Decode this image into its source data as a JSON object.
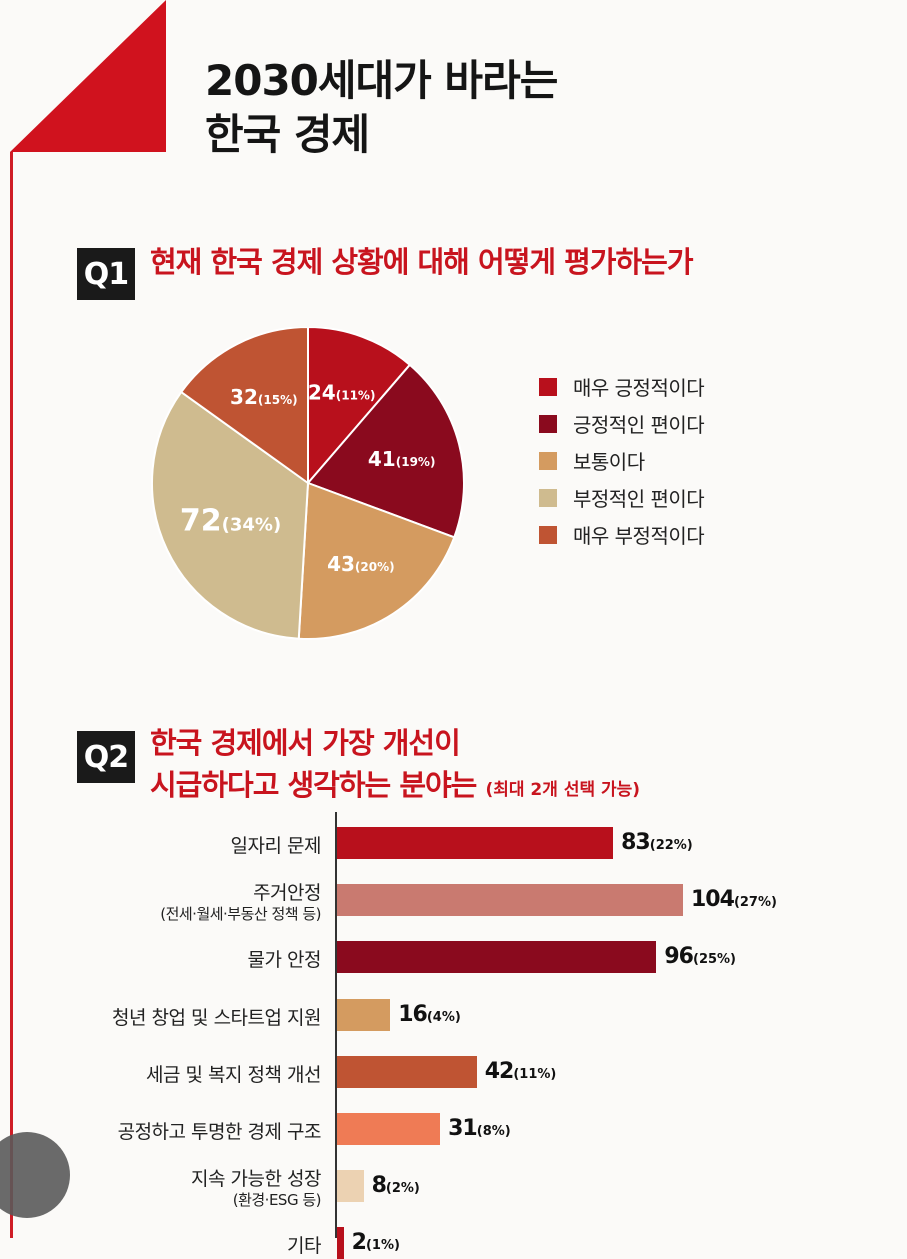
{
  "title": [
    "2030세대가 바라는",
    "한국 경제"
  ],
  "q1": {
    "badge": "Q1",
    "question": "현재 한국 경제 상황에 대해 어떻게 평가하는가"
  },
  "q2": {
    "badge": "Q2",
    "question_line1": "한국 경제에서 가장 개선이",
    "question_line2": "시급하다고 생각하는 분야는",
    "note": "(최대 2개 선택 가능)"
  },
  "chart_data": [
    {
      "type": "pie",
      "labels": [
        "매우 긍정적이다",
        "긍정적인 편이다",
        "보통이다",
        "부정적인 편이다",
        "매우 부정적이다"
      ],
      "values": [
        24,
        41,
        43,
        72,
        32
      ],
      "percents": [
        "(11%)",
        "(19%)",
        "(20%)",
        "(34%)",
        "(15%)"
      ],
      "colors": [
        "#b8101c",
        "#8a0a1e",
        "#d49b60",
        "#cfbb8f",
        "#bf5433"
      ],
      "legend": "right"
    },
    {
      "type": "bar",
      "orientation": "horizontal",
      "categories": [
        {
          "label": "일자리 문제",
          "sub": ""
        },
        {
          "label": "주거안정",
          "sub": "(전세·월세·부동산 정책 등)"
        },
        {
          "label": "물가 안정",
          "sub": ""
        },
        {
          "label": "청년 창업 및 스타트업 지원",
          "sub": ""
        },
        {
          "label": "세금 및 복지 정책 개선",
          "sub": ""
        },
        {
          "label": "공정하고 투명한 경제 구조",
          "sub": ""
        },
        {
          "label": "지속 가능한 성장",
          "sub": "(환경·ESG 등)"
        },
        {
          "label": "기타",
          "sub": ""
        }
      ],
      "values": [
        83,
        104,
        96,
        16,
        42,
        31,
        8,
        2
      ],
      "percents": [
        "(22%)",
        "(27%)",
        "(25%)",
        "(4%)",
        "(11%)",
        "(8%)",
        "(2%)",
        "(1%)"
      ],
      "colors": [
        "#b8101c",
        "#c97a70",
        "#8a0a1e",
        "#d49b60",
        "#bf5433",
        "#ef7b55",
        "#ecd2b2",
        "#b8101c"
      ]
    }
  ]
}
